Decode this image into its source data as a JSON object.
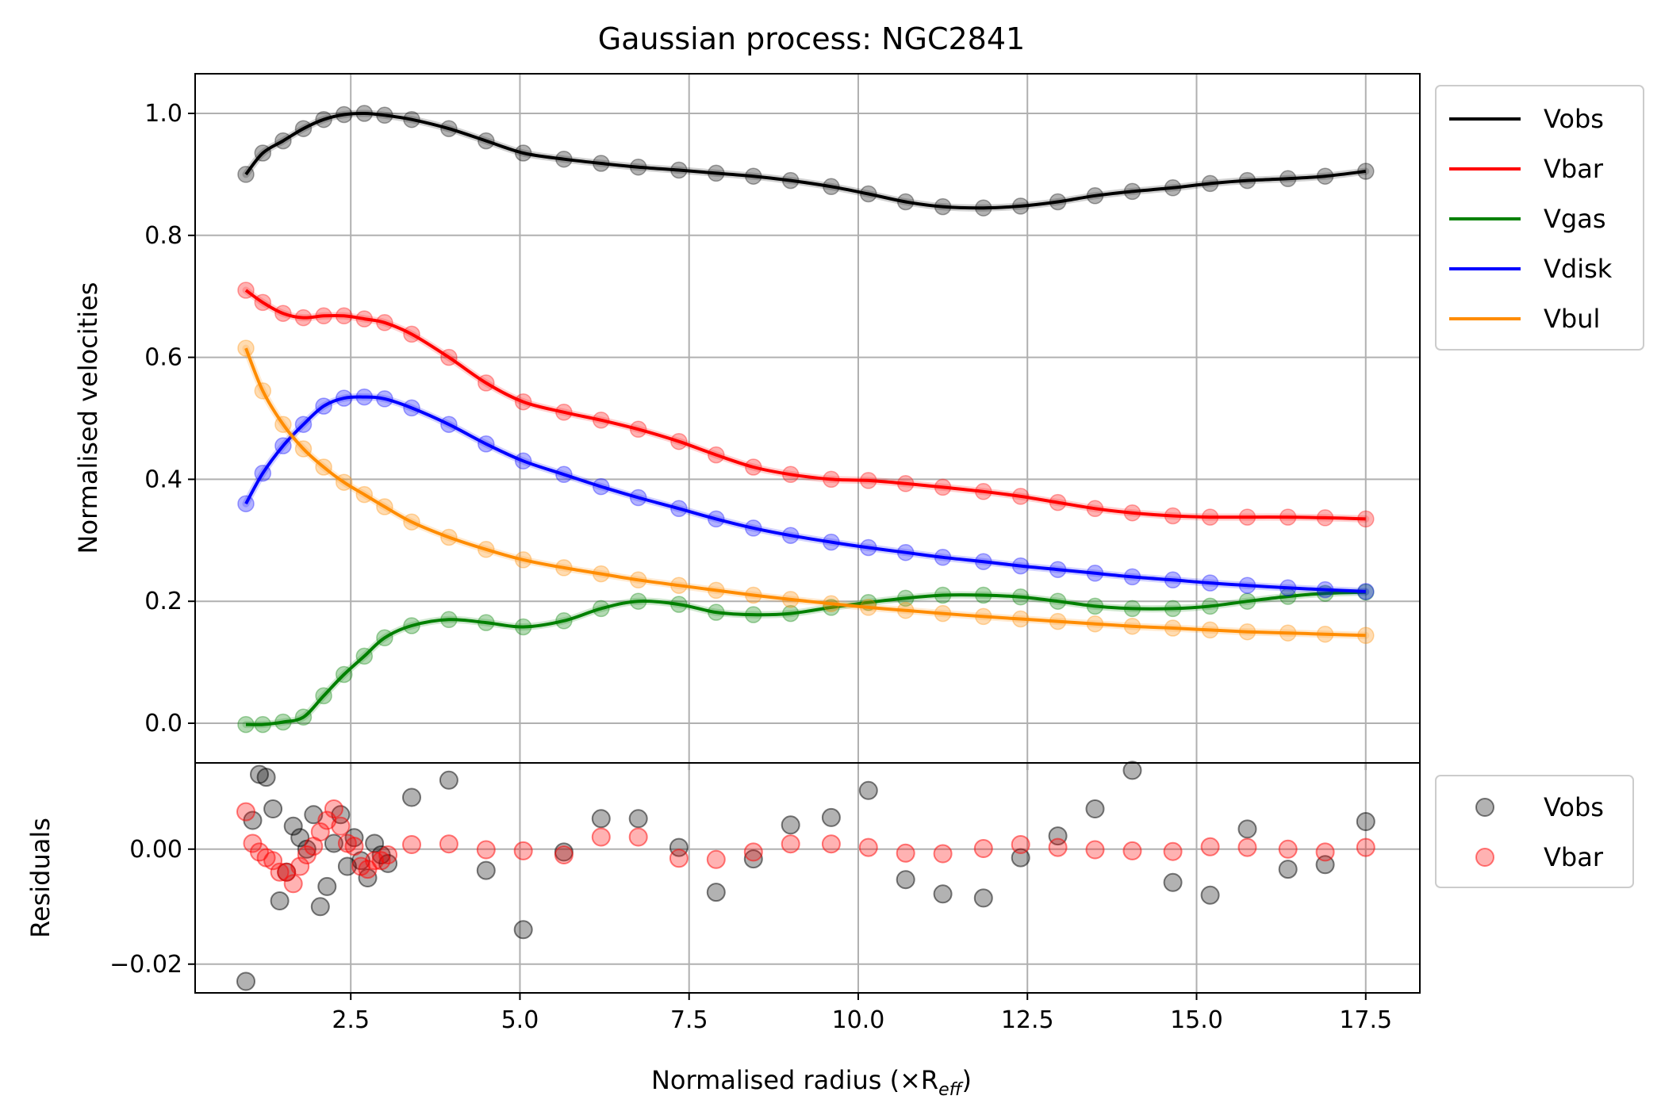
{
  "chart_data": [
    {
      "type": "line",
      "title": "Gaussian process: NGC2841",
      "xlabel": "",
      "ylabel": "Normalised velocities",
      "xlim": [
        0.2,
        18.3
      ],
      "ylim": [
        -0.065,
        1.065
      ],
      "grid": true,
      "legend_placement": "outside-right",
      "xticks": [
        2.5,
        5.0,
        7.5,
        10.0,
        12.5,
        15.0,
        17.5
      ],
      "yticks": [
        0.0,
        0.2,
        0.4,
        0.6,
        0.8,
        1.0
      ],
      "xtick_labels": [
        "2.5",
        "5.0",
        "7.5",
        "10.0",
        "12.5",
        "15.0",
        "17.5"
      ],
      "ytick_labels": [
        "0.0",
        "0.2",
        "0.4",
        "0.6",
        "0.8",
        "1.0"
      ],
      "x": [
        0.95,
        1.2,
        1.5,
        1.8,
        2.1,
        2.4,
        2.7,
        3.0,
        3.4,
        3.95,
        4.5,
        5.05,
        5.65,
        6.2,
        6.75,
        7.35,
        7.9,
        8.45,
        9.0,
        9.6,
        10.15,
        10.7,
        11.25,
        11.85,
        12.4,
        12.95,
        13.5,
        14.05,
        14.65,
        15.2,
        15.75,
        16.35,
        16.9,
        17.5
      ],
      "series": [
        {
          "name": "Vobs",
          "color": "#000000",
          "values": [
            0.9,
            0.935,
            0.955,
            0.975,
            0.99,
            0.998,
            1.0,
            0.997,
            0.99,
            0.975,
            0.955,
            0.935,
            0.925,
            0.918,
            0.912,
            0.907,
            0.902,
            0.897,
            0.89,
            0.88,
            0.868,
            0.855,
            0.847,
            0.845,
            0.848,
            0.855,
            0.865,
            0.872,
            0.878,
            0.885,
            0.89,
            0.893,
            0.897,
            0.905
          ]
        },
        {
          "name": "Vbar",
          "color": "#ff0000",
          "values": [
            0.71,
            0.69,
            0.672,
            0.665,
            0.668,
            0.668,
            0.663,
            0.657,
            0.638,
            0.6,
            0.558,
            0.527,
            0.51,
            0.497,
            0.482,
            0.462,
            0.44,
            0.42,
            0.408,
            0.4,
            0.398,
            0.393,
            0.387,
            0.38,
            0.372,
            0.362,
            0.352,
            0.345,
            0.34,
            0.338,
            0.338,
            0.338,
            0.337,
            0.335
          ]
        },
        {
          "name": "Vgas",
          "color": "#008000",
          "values": [
            -0.002,
            -0.002,
            0.002,
            0.01,
            0.045,
            0.08,
            0.11,
            0.14,
            0.16,
            0.17,
            0.165,
            0.158,
            0.168,
            0.188,
            0.2,
            0.195,
            0.182,
            0.178,
            0.18,
            0.19,
            0.198,
            0.205,
            0.21,
            0.21,
            0.207,
            0.2,
            0.192,
            0.188,
            0.188,
            0.192,
            0.2,
            0.208,
            0.213,
            0.215
          ]
        },
        {
          "name": "Vdisk",
          "color": "#0000ff",
          "values": [
            0.36,
            0.41,
            0.455,
            0.49,
            0.52,
            0.533,
            0.535,
            0.532,
            0.517,
            0.49,
            0.458,
            0.43,
            0.408,
            0.388,
            0.37,
            0.352,
            0.335,
            0.32,
            0.308,
            0.297,
            0.288,
            0.28,
            0.272,
            0.265,
            0.258,
            0.252,
            0.246,
            0.24,
            0.235,
            0.23,
            0.226,
            0.222,
            0.219,
            0.216
          ]
        },
        {
          "name": "Vbul",
          "color": "#ff8c00",
          "values": [
            0.615,
            0.545,
            0.49,
            0.45,
            0.42,
            0.395,
            0.375,
            0.355,
            0.33,
            0.305,
            0.285,
            0.268,
            0.255,
            0.245,
            0.235,
            0.226,
            0.218,
            0.21,
            0.203,
            0.196,
            0.19,
            0.185,
            0.18,
            0.175,
            0.171,
            0.167,
            0.163,
            0.159,
            0.156,
            0.153,
            0.15,
            0.148,
            0.146,
            0.144
          ]
        }
      ]
    },
    {
      "type": "scatter",
      "title": "",
      "xlabel": "Normalised radius (×R",
      "xlabel_subscript": "eff",
      "xlabel_suffix": ")",
      "ylabel": "Residuals",
      "xlim": [
        0.2,
        18.3
      ],
      "ylim": [
        -0.025,
        0.015
      ],
      "grid": true,
      "legend_placement": "outside-right",
      "xticks": [
        2.5,
        5.0,
        7.5,
        10.0,
        12.5,
        15.0,
        17.5
      ],
      "yticks": [
        -0.02,
        0.0
      ],
      "xtick_labels": [
        "2.5",
        "5.0",
        "7.5",
        "10.0",
        "12.5",
        "15.0",
        "17.5"
      ],
      "ytick_labels": [
        "−0.02",
        "0.00"
      ],
      "series": [
        {
          "name": "Vobs",
          "color": "#000000",
          "x": [
            0.95,
            1.05,
            1.15,
            1.25,
            1.35,
            1.45,
            1.55,
            1.65,
            1.75,
            1.85,
            1.95,
            2.05,
            2.15,
            2.25,
            2.35,
            2.45,
            2.55,
            2.65,
            2.75,
            2.85,
            2.95,
            3.05,
            3.4,
            3.95,
            4.5,
            5.05,
            5.65,
            6.2,
            6.75,
            7.35,
            7.9,
            8.45,
            9.0,
            9.6,
            10.15,
            10.7,
            11.25,
            11.85,
            12.4,
            12.95,
            13.5,
            14.05,
            14.65,
            15.2,
            15.75,
            16.35,
            16.9,
            17.5
          ],
          "values": [
            -0.023,
            0.005,
            0.013,
            0.0125,
            0.007,
            -0.009,
            -0.004,
            0.004,
            0.002,
            0.0,
            0.006,
            -0.01,
            -0.0065,
            0.001,
            0.006,
            -0.003,
            0.002,
            -0.002,
            -0.005,
            0.001,
            -0.001,
            -0.0025,
            0.009,
            0.012,
            -0.0037,
            -0.014,
            -0.0005,
            0.0053,
            0.0053,
            0.0003,
            -0.0075,
            -0.0017,
            0.0042,
            0.0055,
            0.0102,
            -0.0053,
            -0.0078,
            -0.0085,
            -0.0015,
            0.0023,
            0.007,
            0.0137,
            -0.0058,
            -0.008,
            0.0035,
            -0.0035,
            -0.0027,
            0.0048
          ]
        },
        {
          "name": "Vbar",
          "color": "#ff0000",
          "x": [
            0.95,
            1.05,
            1.15,
            1.25,
            1.35,
            1.45,
            1.55,
            1.65,
            1.75,
            1.85,
            1.95,
            2.05,
            2.15,
            2.25,
            2.35,
            2.45,
            2.55,
            2.65,
            2.75,
            2.85,
            2.95,
            3.05,
            3.4,
            3.95,
            4.5,
            5.05,
            5.65,
            6.2,
            6.75,
            7.35,
            7.9,
            8.45,
            9.0,
            9.6,
            10.15,
            10.7,
            11.25,
            11.85,
            12.4,
            12.95,
            13.5,
            14.05,
            14.65,
            15.2,
            15.75,
            16.35,
            16.9,
            17.5
          ],
          "values": [
            0.0065,
            0.001,
            -0.0005,
            -0.0015,
            -0.002,
            -0.004,
            -0.004,
            -0.006,
            -0.003,
            -0.001,
            0.0005,
            0.003,
            0.005,
            0.007,
            0.004,
            0.001,
            0.0005,
            -0.003,
            -0.0035,
            -0.002,
            -0.002,
            -0.001,
            0.0008,
            0.0009,
            -0.0001,
            -0.0003,
            -0.001,
            0.0021,
            0.0021,
            -0.0016,
            -0.0018,
            -0.0005,
            0.0009,
            0.0009,
            0.0003,
            -0.0007,
            -0.0008,
            0.0001,
            0.0008,
            0.0003,
            -0.0001,
            -0.0003,
            -0.0004,
            0.0004,
            0.0003,
            0.0,
            -0.0005,
            0.0003
          ]
        }
      ]
    }
  ]
}
